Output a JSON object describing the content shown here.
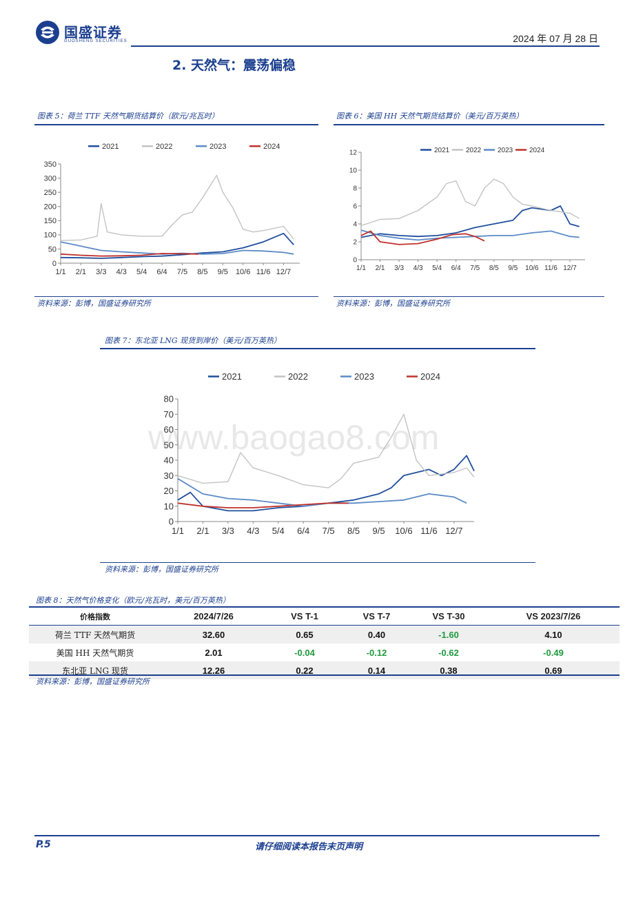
{
  "header": {
    "company": "国盛证券",
    "company_en": "GUOSHENG SECURITIES",
    "date": "2024 年 07 月 28 日"
  },
  "section": {
    "title": "2. 天然气：震荡偏稳"
  },
  "figures": [
    {
      "title": "图表 5：荷兰 TTF 天然气期货结算价（欧元/兆瓦时）",
      "source": "资料来源：彭博，国盛证券研究所"
    },
    {
      "title": "图表 6：美国 HH 天然气期货结算价（美元/百万英热）",
      "source": "资料来源：彭博，国盛证券研究所"
    },
    {
      "title": "图表 7：东北亚 LNG 现货到岸价（美元/百万英热）",
      "source": "资料来源：彭博，国盛证券研究所"
    }
  ],
  "colors": {
    "s2021": "#1f4e9c",
    "s2022": "#c3c3c3",
    "s2023": "#5b8ac7",
    "s2024": "#c0302a",
    "brand": "#1b3f8f",
    "neg": "#1e9a3e"
  },
  "chart_data": [
    {
      "type": "line",
      "x_ticks": [
        "1/1",
        "2/1",
        "3/3",
        "4/3",
        "5/4",
        "6/4",
        "7/5",
        "8/5",
        "9/5",
        "10/6",
        "11/6",
        "12/7"
      ],
      "y_ticks": [
        0,
        50,
        100,
        150,
        200,
        250,
        300,
        350
      ],
      "ylim": [
        0,
        350
      ],
      "legend": "top",
      "series": [
        {
          "name": "2021",
          "color": "#1f4e9c",
          "values": [
            [
              0,
              20
            ],
            [
              1,
              19
            ],
            [
              2,
              17
            ],
            [
              3,
              20
            ],
            [
              4,
              23
            ],
            [
              5,
              25
            ],
            [
              6,
              30
            ],
            [
              7,
              36
            ],
            [
              8,
              40
            ],
            [
              9,
              54
            ],
            [
              10,
              75
            ],
            [
              11,
              105
            ],
            [
              11.5,
              65
            ]
          ]
        },
        {
          "name": "2022",
          "color": "#c3c3c3",
          "values": [
            [
              0,
              80
            ],
            [
              1,
              82
            ],
            [
              1.8,
              95
            ],
            [
              2,
              210
            ],
            [
              2.3,
              110
            ],
            [
              3,
              100
            ],
            [
              4,
              95
            ],
            [
              5,
              95
            ],
            [
              5.5,
              135
            ],
            [
              6,
              170
            ],
            [
              6.5,
              180
            ],
            [
              7,
              230
            ],
            [
              7.7,
              310
            ],
            [
              8,
              250
            ],
            [
              8.5,
              195
            ],
            [
              9,
              120
            ],
            [
              9.5,
              110
            ],
            [
              10,
              115
            ],
            [
              11,
              130
            ],
            [
              11.5,
              85
            ]
          ]
        },
        {
          "name": "2023",
          "color": "#5b8ac7",
          "values": [
            [
              0,
              75
            ],
            [
              1,
              60
            ],
            [
              2,
              45
            ],
            [
              3,
              40
            ],
            [
              4,
              36
            ],
            [
              5,
              32
            ],
            [
              6,
              35
            ],
            [
              7,
              32
            ],
            [
              8,
              34
            ],
            [
              9,
              45
            ],
            [
              10,
              43
            ],
            [
              11,
              38
            ],
            [
              11.5,
              32
            ]
          ]
        },
        {
          "name": "2024",
          "color": "#c0302a",
          "values": [
            [
              0,
              32
            ],
            [
              1,
              28
            ],
            [
              2,
              25
            ],
            [
              3,
              26
            ],
            [
              4,
              28
            ],
            [
              5,
              34
            ],
            [
              6,
              33
            ],
            [
              6.8,
              32
            ]
          ]
        }
      ]
    },
    {
      "type": "line",
      "x_ticks": [
        "1/1",
        "2/1",
        "3/3",
        "4/3",
        "5/4",
        "6/4",
        "7/5",
        "8/5",
        "9/5",
        "10/6",
        "11/6",
        "12/7"
      ],
      "y_ticks": [
        0,
        2,
        4,
        6,
        8,
        10,
        12
      ],
      "ylim": [
        0,
        12
      ],
      "legend": "top",
      "series": [
        {
          "name": "2021",
          "color": "#1f4e9c",
          "values": [
            [
              0,
              2.5
            ],
            [
              1,
              2.9
            ],
            [
              2,
              2.7
            ],
            [
              3,
              2.6
            ],
            [
              4,
              2.7
            ],
            [
              5,
              3.0
            ],
            [
              6,
              3.6
            ],
            [
              7,
              4.0
            ],
            [
              8,
              4.4
            ],
            [
              8.5,
              5.5
            ],
            [
              9,
              5.8
            ],
            [
              10,
              5.5
            ],
            [
              10.5,
              6.0
            ],
            [
              11,
              4.0
            ],
            [
              11.5,
              3.7
            ]
          ]
        },
        {
          "name": "2022",
          "color": "#c3c3c3",
          "values": [
            [
              0,
              3.8
            ],
            [
              1,
              4.5
            ],
            [
              2,
              4.6
            ],
            [
              3,
              5.5
            ],
            [
              4,
              7.0
            ],
            [
              4.5,
              8.5
            ],
            [
              5,
              8.8
            ],
            [
              5.5,
              6.5
            ],
            [
              6,
              6.0
            ],
            [
              6.5,
              8.0
            ],
            [
              7,
              9.0
            ],
            [
              7.5,
              8.5
            ],
            [
              8,
              7.0
            ],
            [
              8.5,
              6.2
            ],
            [
              9,
              6.0
            ],
            [
              10,
              5.5
            ],
            [
              11,
              5.2
            ],
            [
              11.5,
              4.6
            ]
          ]
        },
        {
          "name": "2023",
          "color": "#5b8ac7",
          "values": [
            [
              0,
              3.3
            ],
            [
              1,
              2.7
            ],
            [
              2,
              2.4
            ],
            [
              3,
              2.2
            ],
            [
              4,
              2.4
            ],
            [
              5,
              2.5
            ],
            [
              6,
              2.6
            ],
            [
              7,
              2.7
            ],
            [
              8,
              2.7
            ],
            [
              9,
              3.0
            ],
            [
              10,
              3.2
            ],
            [
              11,
              2.6
            ],
            [
              11.5,
              2.5
            ]
          ]
        },
        {
          "name": "2024",
          "color": "#c0302a",
          "values": [
            [
              0,
              2.7
            ],
            [
              0.5,
              3.2
            ],
            [
              1,
              2.0
            ],
            [
              2,
              1.7
            ],
            [
              3,
              1.8
            ],
            [
              4,
              2.3
            ],
            [
              4.8,
              2.8
            ],
            [
              5.5,
              2.9
            ],
            [
              6,
              2.6
            ],
            [
              6.5,
              2.1
            ]
          ]
        }
      ]
    },
    {
      "type": "line",
      "x_ticks": [
        "1/1",
        "2/1",
        "3/3",
        "4/3",
        "5/4",
        "6/4",
        "7/5",
        "8/5",
        "9/5",
        "10/6",
        "11/6",
        "12/7"
      ],
      "y_ticks": [
        0,
        10,
        20,
        30,
        40,
        50,
        60,
        70,
        80
      ],
      "ylim": [
        0,
        80
      ],
      "legend": "top",
      "series": [
        {
          "name": "2021",
          "color": "#1f4e9c",
          "values": [
            [
              0,
              14
            ],
            [
              0.5,
              19
            ],
            [
              1,
              10
            ],
            [
              2,
              7
            ],
            [
              3,
              7
            ],
            [
              4,
              9
            ],
            [
              5,
              10
            ],
            [
              6,
              12
            ],
            [
              7,
              14
            ],
            [
              7.5,
              16
            ],
            [
              8,
              18
            ],
            [
              8.5,
              22
            ],
            [
              9,
              30
            ],
            [
              10,
              34
            ],
            [
              10.5,
              30
            ],
            [
              11,
              34
            ],
            [
              11.5,
              43
            ],
            [
              11.8,
              33
            ]
          ]
        },
        {
          "name": "2022",
          "color": "#c3c3c3",
          "values": [
            [
              0,
              30
            ],
            [
              1,
              25
            ],
            [
              2,
              26
            ],
            [
              2.5,
              45
            ],
            [
              3,
              35
            ],
            [
              4,
              30
            ],
            [
              5,
              24
            ],
            [
              6,
              22
            ],
            [
              6.5,
              28
            ],
            [
              7,
              38
            ],
            [
              8,
              42
            ],
            [
              8.5,
              55
            ],
            [
              9,
              70
            ],
            [
              9.5,
              40
            ],
            [
              10,
              30
            ],
            [
              11,
              32
            ],
            [
              11.5,
              35
            ],
            [
              11.8,
              29
            ]
          ]
        },
        {
          "name": "2023",
          "color": "#5b8ac7",
          "values": [
            [
              0,
              28
            ],
            [
              1,
              18
            ],
            [
              2,
              15
            ],
            [
              3,
              14
            ],
            [
              4,
              12
            ],
            [
              5,
              10
            ],
            [
              6,
              12
            ],
            [
              7,
              12
            ],
            [
              8,
              13
            ],
            [
              9,
              14
            ],
            [
              10,
              18
            ],
            [
              11,
              16
            ],
            [
              11.5,
              12
            ]
          ]
        },
        {
          "name": "2024",
          "color": "#c0302a",
          "values": [
            [
              0,
              12
            ],
            [
              1,
              10
            ],
            [
              2,
              9
            ],
            [
              3,
              9
            ],
            [
              4,
              10
            ],
            [
              5,
              11
            ],
            [
              6,
              12
            ],
            [
              6.8,
              12
            ]
          ]
        }
      ]
    }
  ],
  "table": {
    "title": "图表 8：天然气价格变化（欧元/兆瓦时，美元/百万英热）",
    "headers": [
      "价格指数",
      "2024/7/26",
      "VS T-1",
      "VS T-7",
      "VS T-30",
      "VS 2023/7/26"
    ],
    "rows": [
      {
        "name": "荷兰 TTF 天然气期货",
        "cells": [
          "32.60",
          "0.65",
          "0.40",
          "-1.60",
          "4.10"
        ]
      },
      {
        "name": "美国 HH 天然气期货",
        "cells": [
          "2.01",
          "-0.04",
          "-0.12",
          "-0.62",
          "-0.49"
        ]
      },
      {
        "name": "东北亚 LNG 现货",
        "cells": [
          "12.26",
          "0.22",
          "0.14",
          "0.38",
          "0.69"
        ]
      }
    ],
    "source": "资料来源：彭博，国盛证券研究所"
  },
  "watermark": "www.baogao8.com",
  "footer": {
    "page": "P.5",
    "notice": "请仔细阅读本报告末页声明"
  }
}
